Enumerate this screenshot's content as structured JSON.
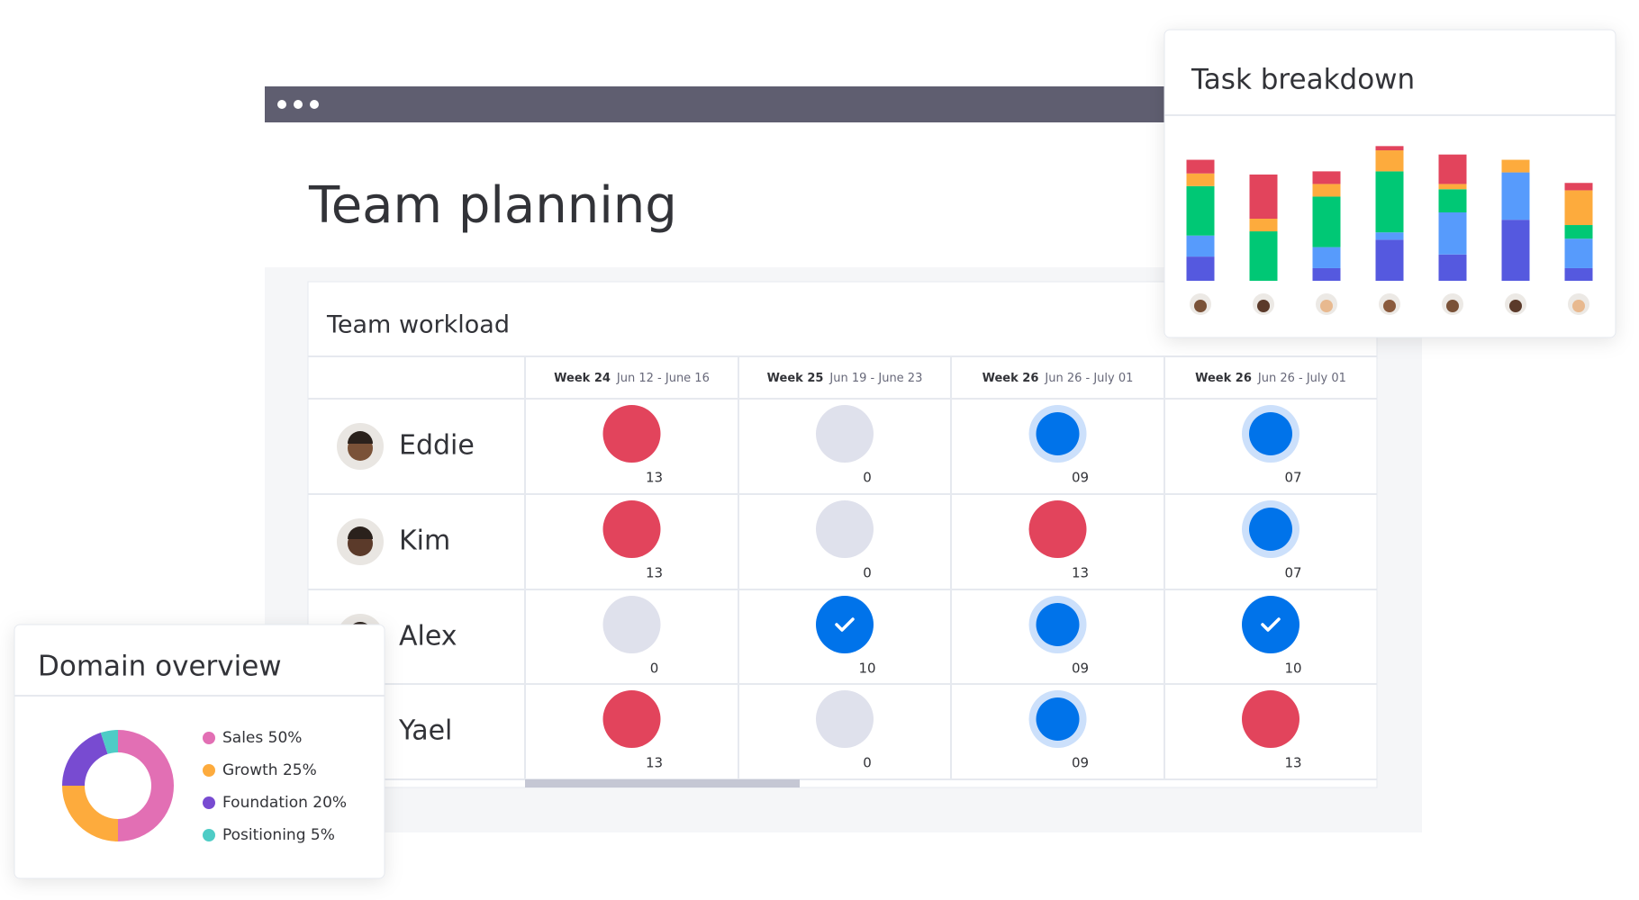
{
  "window": {
    "title": "Team planning"
  },
  "workload": {
    "title": "Team workload",
    "columns": [
      {
        "week": "Week 24",
        "dates": "Jun 12 - June 16"
      },
      {
        "week": "Week 25",
        "dates": "Jun 19 - June 23"
      },
      {
        "week": "Week 26",
        "dates": "Jun 26 - July 01"
      },
      {
        "week": "Week 26",
        "dates": "Jun 26 - July 01"
      }
    ],
    "rows": [
      {
        "name": "Eddie",
        "cells": [
          {
            "label": "13",
            "color": "#e2445c"
          },
          {
            "label": "0",
            "color": "#dfe1ec"
          },
          {
            "label": "09",
            "color": "#0073ea",
            "ring": true
          },
          {
            "label": "07",
            "color": "#0073ea",
            "ring": true
          }
        ]
      },
      {
        "name": "Kim",
        "cells": [
          {
            "label": "13",
            "color": "#e2445c"
          },
          {
            "label": "0",
            "color": "#dfe1ec"
          },
          {
            "label": "13",
            "color": "#e2445c"
          },
          {
            "label": "07",
            "color": "#0073ea",
            "ring": true
          }
        ]
      },
      {
        "name": "Alex",
        "cells": [
          {
            "label": "0",
            "color": "#dfe1ec"
          },
          {
            "label": "10",
            "color": "#0073ea",
            "check": true
          },
          {
            "label": "09",
            "color": "#0073ea",
            "ring": true
          },
          {
            "label": "10",
            "color": "#0073ea",
            "check": true
          }
        ]
      },
      {
        "name": "Yael",
        "cells": [
          {
            "label": "13",
            "color": "#e2445c"
          },
          {
            "label": "0",
            "color": "#dfe1ec"
          },
          {
            "label": "09",
            "color": "#0073ea",
            "ring": true
          },
          {
            "label": "13",
            "color": "#e2445c"
          }
        ]
      }
    ]
  },
  "chart_data": [
    {
      "type": "bar",
      "title": "Task breakdown",
      "stacked": true,
      "ylim": [
        0,
        130
      ],
      "series": [
        {
          "color": "#5559df",
          "values": [
            23,
            0,
            12,
            39,
            25,
            58,
            12
          ]
        },
        {
          "color": "#579bfc",
          "values": [
            20,
            0,
            20,
            7,
            40,
            45,
            28
          ]
        },
        {
          "color": "#00c875",
          "values": [
            47,
            47,
            48,
            58,
            22,
            0,
            13
          ]
        },
        {
          "color": "#fdab3d",
          "values": [
            12,
            12,
            12,
            20,
            5,
            12,
            33
          ]
        },
        {
          "color": "#e2445c",
          "values": [
            13,
            42,
            12,
            4,
            28,
            0,
            7
          ]
        }
      ]
    },
    {
      "type": "pie",
      "title": "Domain overview",
      "donut": true,
      "categories": [
        "Sales 50%",
        "Growth 25%",
        "Foundation 20%",
        "Positioning 5%"
      ],
      "values": [
        50,
        25,
        20,
        5
      ],
      "colors": [
        "#e26fb4",
        "#fdab3d",
        "#784bd1",
        "#4eccc6"
      ]
    }
  ]
}
